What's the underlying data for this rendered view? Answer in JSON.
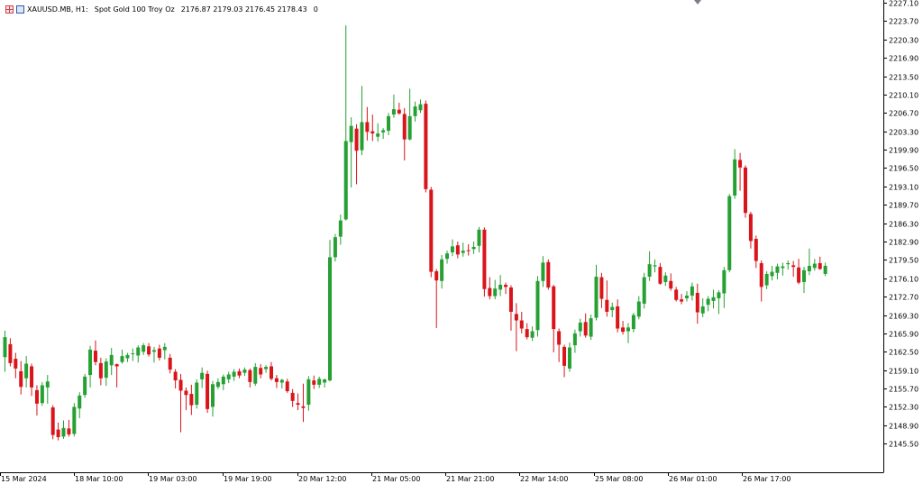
{
  "header": {
    "symbol": "XAUUSD.MB, H1:",
    "description": "Spot Gold 100 Troy Oz",
    "ohlc": "2176.87 2179.03 2176.45 2178.43",
    "spread": "0"
  },
  "colors": {
    "bull": "#26a033",
    "bear": "#d9141a",
    "wick_bull": "#26a033",
    "wick_bear": "#d9141a",
    "axis": "#000000",
    "background": "#ffffff"
  },
  "chart_data": {
    "type": "candlestick",
    "ylim": [
      2143.7,
      2227.1
    ],
    "y_ticks": [
      "2227.10",
      "2223.70",
      "2220.30",
      "2216.90",
      "2213.50",
      "2210.10",
      "2206.70",
      "2203.30",
      "2199.90",
      "2196.50",
      "2193.10",
      "2189.70",
      "2186.30",
      "2182.90",
      "2179.50",
      "2176.10",
      "2172.70",
      "2169.30",
      "2165.90",
      "2162.50",
      "2159.10",
      "2155.70",
      "2152.30",
      "2148.90",
      "2145.50"
    ],
    "x_labels": [
      "15 Mar 2024",
      "18 Mar 10:00",
      "19 Mar 03:00",
      "19 Mar 19:00",
      "20 Mar 12:00",
      "21 Mar 05:00",
      "21 Mar 21:00",
      "22 Mar 14:00",
      "25 Mar 08:00",
      "26 Mar 01:00",
      "26 Mar 17:00"
    ],
    "grid": false,
    "candles": [
      {
        "o": 2161.5,
        "h": 2166.4,
        "l": 2158.8,
        "c": 2165.2
      },
      {
        "o": 2163.9,
        "h": 2165.0,
        "l": 2159.8,
        "c": 2160.4
      },
      {
        "o": 2161.2,
        "h": 2162.3,
        "l": 2157.6,
        "c": 2159.4
      },
      {
        "o": 2158.9,
        "h": 2160.8,
        "l": 2154.6,
        "c": 2156.0
      },
      {
        "o": 2157.6,
        "h": 2161.7,
        "l": 2155.9,
        "c": 2160.3
      },
      {
        "o": 2159.8,
        "h": 2160.3,
        "l": 2154.3,
        "c": 2155.9
      },
      {
        "o": 2155.4,
        "h": 2156.3,
        "l": 2150.7,
        "c": 2152.9
      },
      {
        "o": 2153.0,
        "h": 2156.9,
        "l": 2152.5,
        "c": 2156.3
      },
      {
        "o": 2155.9,
        "h": 2158.2,
        "l": 2152.9,
        "c": 2157.0
      },
      {
        "o": 2152.2,
        "h": 2152.6,
        "l": 2146.3,
        "c": 2147.1
      },
      {
        "o": 2148.1,
        "h": 2149.4,
        "l": 2146.1,
        "c": 2146.7
      },
      {
        "o": 2146.8,
        "h": 2149.8,
        "l": 2146.4,
        "c": 2148.4
      },
      {
        "o": 2148.3,
        "h": 2149.9,
        "l": 2146.8,
        "c": 2147.2
      },
      {
        "o": 2147.3,
        "h": 2153.0,
        "l": 2146.8,
        "c": 2152.3
      },
      {
        "o": 2152.0,
        "h": 2155.0,
        "l": 2150.2,
        "c": 2154.4
      },
      {
        "o": 2154.5,
        "h": 2158.4,
        "l": 2154.0,
        "c": 2157.9
      },
      {
        "o": 2158.2,
        "h": 2163.6,
        "l": 2155.9,
        "c": 2162.9
      },
      {
        "o": 2162.7,
        "h": 2164.6,
        "l": 2160.0,
        "c": 2160.6
      },
      {
        "o": 2160.4,
        "h": 2161.4,
        "l": 2156.3,
        "c": 2157.6
      },
      {
        "o": 2157.7,
        "h": 2161.3,
        "l": 2156.2,
        "c": 2160.7
      },
      {
        "o": 2160.0,
        "h": 2163.2,
        "l": 2158.2,
        "c": 2161.9
      },
      {
        "o": 2160.2,
        "h": 2160.3,
        "l": 2155.9,
        "c": 2159.8
      },
      {
        "o": 2160.6,
        "h": 2162.9,
        "l": 2160.3,
        "c": 2161.7
      },
      {
        "o": 2161.3,
        "h": 2162.3,
        "l": 2160.6,
        "c": 2161.9
      },
      {
        "o": 2162.1,
        "h": 2163.1,
        "l": 2160.8,
        "c": 2162.2
      },
      {
        "o": 2161.8,
        "h": 2163.7,
        "l": 2160.5,
        "c": 2163.3
      },
      {
        "o": 2162.5,
        "h": 2164.1,
        "l": 2161.9,
        "c": 2163.7
      },
      {
        "o": 2163.5,
        "h": 2164.1,
        "l": 2161.6,
        "c": 2162.0
      },
      {
        "o": 2162.5,
        "h": 2163.4,
        "l": 2160.5,
        "c": 2162.8
      },
      {
        "o": 2163.1,
        "h": 2163.8,
        "l": 2160.9,
        "c": 2161.4
      },
      {
        "o": 2162.8,
        "h": 2164.1,
        "l": 2161.1,
        "c": 2163.4
      },
      {
        "o": 2161.4,
        "h": 2162.1,
        "l": 2158.5,
        "c": 2159.2
      },
      {
        "o": 2158.8,
        "h": 2159.3,
        "l": 2155.7,
        "c": 2157.2
      },
      {
        "o": 2157.3,
        "h": 2158.4,
        "l": 2147.6,
        "c": 2155.3
      },
      {
        "o": 2155.3,
        "h": 2155.9,
        "l": 2151.7,
        "c": 2154.5
      },
      {
        "o": 2154.7,
        "h": 2156.4,
        "l": 2150.8,
        "c": 2152.6
      },
      {
        "o": 2152.7,
        "h": 2157.4,
        "l": 2152.0,
        "c": 2156.8
      },
      {
        "o": 2157.4,
        "h": 2159.6,
        "l": 2155.8,
        "c": 2158.6
      },
      {
        "o": 2158.4,
        "h": 2159.0,
        "l": 2151.2,
        "c": 2151.9
      },
      {
        "o": 2152.3,
        "h": 2157.1,
        "l": 2150.5,
        "c": 2156.5
      },
      {
        "o": 2156.0,
        "h": 2157.6,
        "l": 2155.6,
        "c": 2156.9
      },
      {
        "o": 2156.5,
        "h": 2158.3,
        "l": 2155.4,
        "c": 2157.9
      },
      {
        "o": 2157.4,
        "h": 2158.8,
        "l": 2156.7,
        "c": 2158.3
      },
      {
        "o": 2157.9,
        "h": 2159.3,
        "l": 2157.1,
        "c": 2158.8
      },
      {
        "o": 2158.9,
        "h": 2159.4,
        "l": 2157.6,
        "c": 2158.1
      },
      {
        "o": 2158.6,
        "h": 2159.6,
        "l": 2158.0,
        "c": 2159.2
      },
      {
        "o": 2159.1,
        "h": 2159.4,
        "l": 2155.9,
        "c": 2156.9
      },
      {
        "o": 2156.6,
        "h": 2160.4,
        "l": 2156.2,
        "c": 2159.7
      },
      {
        "o": 2159.5,
        "h": 2160.2,
        "l": 2157.6,
        "c": 2158.3
      },
      {
        "o": 2159.3,
        "h": 2160.0,
        "l": 2158.6,
        "c": 2159.7
      },
      {
        "o": 2159.8,
        "h": 2160.6,
        "l": 2157.2,
        "c": 2157.5
      },
      {
        "o": 2157.6,
        "h": 2158.2,
        "l": 2155.8,
        "c": 2156.9
      },
      {
        "o": 2156.8,
        "h": 2157.5,
        "l": 2155.7,
        "c": 2157.3
      },
      {
        "o": 2157.0,
        "h": 2157.5,
        "l": 2154.9,
        "c": 2155.2
      },
      {
        "o": 2154.9,
        "h": 2155.6,
        "l": 2152.3,
        "c": 2153.4
      },
      {
        "o": 2153.0,
        "h": 2154.8,
        "l": 2151.7,
        "c": 2152.7
      },
      {
        "o": 2152.4,
        "h": 2156.6,
        "l": 2149.5,
        "c": 2152.1
      },
      {
        "o": 2152.7,
        "h": 2158.0,
        "l": 2151.6,
        "c": 2157.4
      },
      {
        "o": 2157.2,
        "h": 2158.1,
        "l": 2155.6,
        "c": 2156.4
      },
      {
        "o": 2156.4,
        "h": 2157.9,
        "l": 2155.8,
        "c": 2157.5
      },
      {
        "o": 2156.8,
        "h": 2157.5,
        "l": 2155.9,
        "c": 2157.4
      },
      {
        "o": 2157.2,
        "h": 2183.2,
        "l": 2157.0,
        "c": 2180.0
      },
      {
        "o": 2180.0,
        "h": 2184.3,
        "l": 2179.2,
        "c": 2183.7
      },
      {
        "o": 2183.8,
        "h": 2187.9,
        "l": 2182.3,
        "c": 2186.8
      },
      {
        "o": 2187.0,
        "h": 2222.9,
        "l": 2186.8,
        "c": 2201.5
      },
      {
        "o": 2201.3,
        "h": 2205.9,
        "l": 2192.9,
        "c": 2204.3
      },
      {
        "o": 2203.8,
        "h": 2204.6,
        "l": 2193.5,
        "c": 2199.7
      },
      {
        "o": 2199.8,
        "h": 2211.7,
        "l": 2198.9,
        "c": 2205.0
      },
      {
        "o": 2205.0,
        "h": 2207.8,
        "l": 2201.6,
        "c": 2203.2
      },
      {
        "o": 2203.3,
        "h": 2206.4,
        "l": 2201.5,
        "c": 2202.9
      },
      {
        "o": 2202.3,
        "h": 2204.8,
        "l": 2201.4,
        "c": 2202.9
      },
      {
        "o": 2203.1,
        "h": 2203.9,
        "l": 2201.9,
        "c": 2203.5
      },
      {
        "o": 2203.4,
        "h": 2206.7,
        "l": 2202.6,
        "c": 2206.1
      },
      {
        "o": 2206.4,
        "h": 2210.1,
        "l": 2205.8,
        "c": 2207.4
      },
      {
        "o": 2207.3,
        "h": 2208.6,
        "l": 2206.4,
        "c": 2206.6
      },
      {
        "o": 2206.5,
        "h": 2207.6,
        "l": 2197.9,
        "c": 2201.8
      },
      {
        "o": 2201.8,
        "h": 2211.2,
        "l": 2201.6,
        "c": 2206.1
      },
      {
        "o": 2206.1,
        "h": 2208.8,
        "l": 2205.1,
        "c": 2207.9
      },
      {
        "o": 2207.2,
        "h": 2209.2,
        "l": 2206.7,
        "c": 2208.3
      },
      {
        "o": 2208.4,
        "h": 2209.0,
        "l": 2192.0,
        "c": 2192.6
      },
      {
        "o": 2192.5,
        "h": 2193.0,
        "l": 2176.3,
        "c": 2177.3
      },
      {
        "o": 2177.4,
        "h": 2177.8,
        "l": 2166.9,
        "c": 2175.7
      },
      {
        "o": 2175.6,
        "h": 2180.4,
        "l": 2174.2,
        "c": 2179.6
      },
      {
        "o": 2179.7,
        "h": 2181.2,
        "l": 2178.8,
        "c": 2180.7
      },
      {
        "o": 2180.9,
        "h": 2183.3,
        "l": 2180.2,
        "c": 2182.0
      },
      {
        "o": 2182.2,
        "h": 2182.9,
        "l": 2179.8,
        "c": 2180.5
      },
      {
        "o": 2180.8,
        "h": 2182.7,
        "l": 2180.1,
        "c": 2181.2
      },
      {
        "o": 2181.3,
        "h": 2182.4,
        "l": 2180.3,
        "c": 2181.2
      },
      {
        "o": 2181.5,
        "h": 2182.9,
        "l": 2180.6,
        "c": 2181.9
      },
      {
        "o": 2182.1,
        "h": 2185.6,
        "l": 2180.9,
        "c": 2185.1
      },
      {
        "o": 2185.1,
        "h": 2185.5,
        "l": 2172.7,
        "c": 2174.1
      },
      {
        "o": 2174.3,
        "h": 2176.3,
        "l": 2172.2,
        "c": 2172.8
      },
      {
        "o": 2172.8,
        "h": 2175.8,
        "l": 2172.2,
        "c": 2174.2
      },
      {
        "o": 2174.0,
        "h": 2176.7,
        "l": 2172.8,
        "c": 2174.9
      },
      {
        "o": 2174.9,
        "h": 2175.3,
        "l": 2173.2,
        "c": 2174.5
      },
      {
        "o": 2174.4,
        "h": 2174.8,
        "l": 2166.4,
        "c": 2169.9
      },
      {
        "o": 2169.5,
        "h": 2171.5,
        "l": 2162.6,
        "c": 2168.3
      },
      {
        "o": 2168.3,
        "h": 2169.9,
        "l": 2165.9,
        "c": 2166.8
      },
      {
        "o": 2166.7,
        "h": 2167.8,
        "l": 2164.8,
        "c": 2165.2
      },
      {
        "o": 2165.1,
        "h": 2167.2,
        "l": 2164.5,
        "c": 2166.3
      },
      {
        "o": 2166.5,
        "h": 2176.5,
        "l": 2165.3,
        "c": 2175.6
      },
      {
        "o": 2175.6,
        "h": 2180.2,
        "l": 2174.5,
        "c": 2179.0
      },
      {
        "o": 2179.1,
        "h": 2179.6,
        "l": 2174.0,
        "c": 2174.4
      },
      {
        "o": 2174.6,
        "h": 2174.9,
        "l": 2162.4,
        "c": 2166.7
      },
      {
        "o": 2166.3,
        "h": 2166.8,
        "l": 2160.6,
        "c": 2163.8
      },
      {
        "o": 2163.4,
        "h": 2163.8,
        "l": 2157.8,
        "c": 2159.9
      },
      {
        "o": 2159.4,
        "h": 2164.2,
        "l": 2158.8,
        "c": 2163.3
      },
      {
        "o": 2163.7,
        "h": 2166.6,
        "l": 2162.3,
        "c": 2165.9
      },
      {
        "o": 2166.3,
        "h": 2168.6,
        "l": 2165.3,
        "c": 2167.9
      },
      {
        "o": 2168.0,
        "h": 2169.6,
        "l": 2165.1,
        "c": 2165.5
      },
      {
        "o": 2165.3,
        "h": 2169.4,
        "l": 2164.7,
        "c": 2168.7
      },
      {
        "o": 2168.8,
        "h": 2178.6,
        "l": 2168.3,
        "c": 2176.4
      },
      {
        "o": 2176.3,
        "h": 2177.1,
        "l": 2170.6,
        "c": 2172.3
      },
      {
        "o": 2172.1,
        "h": 2175.7,
        "l": 2169.0,
        "c": 2169.9
      },
      {
        "o": 2170.2,
        "h": 2171.6,
        "l": 2168.9,
        "c": 2170.8
      },
      {
        "o": 2170.9,
        "h": 2172.2,
        "l": 2166.1,
        "c": 2166.8
      },
      {
        "o": 2167.0,
        "h": 2168.2,
        "l": 2165.7,
        "c": 2166.2
      },
      {
        "o": 2166.3,
        "h": 2167.8,
        "l": 2164.1,
        "c": 2167.0
      },
      {
        "o": 2166.7,
        "h": 2169.7,
        "l": 2166.1,
        "c": 2169.3
      },
      {
        "o": 2169.0,
        "h": 2172.8,
        "l": 2168.5,
        "c": 2171.8
      },
      {
        "o": 2171.4,
        "h": 2177.1,
        "l": 2170.5,
        "c": 2176.3
      },
      {
        "o": 2176.4,
        "h": 2181.1,
        "l": 2175.6,
        "c": 2178.7
      },
      {
        "o": 2178.3,
        "h": 2179.6,
        "l": 2177.2,
        "c": 2178.5
      },
      {
        "o": 2178.2,
        "h": 2178.9,
        "l": 2174.9,
        "c": 2175.1
      },
      {
        "o": 2175.4,
        "h": 2177.2,
        "l": 2174.7,
        "c": 2176.6
      },
      {
        "o": 2175.6,
        "h": 2177.0,
        "l": 2173.8,
        "c": 2174.2
      },
      {
        "o": 2174.0,
        "h": 2174.5,
        "l": 2171.8,
        "c": 2172.1
      },
      {
        "o": 2172.2,
        "h": 2173.2,
        "l": 2171.3,
        "c": 2171.8
      },
      {
        "o": 2172.4,
        "h": 2173.7,
        "l": 2171.8,
        "c": 2172.9
      },
      {
        "o": 2172.9,
        "h": 2175.3,
        "l": 2172.0,
        "c": 2174.6
      },
      {
        "o": 2173.4,
        "h": 2175.1,
        "l": 2167.7,
        "c": 2169.8
      },
      {
        "o": 2169.6,
        "h": 2172.4,
        "l": 2168.9,
        "c": 2170.9
      },
      {
        "o": 2171.2,
        "h": 2172.8,
        "l": 2170.0,
        "c": 2172.3
      },
      {
        "o": 2171.9,
        "h": 2174.0,
        "l": 2170.5,
        "c": 2172.6
      },
      {
        "o": 2172.4,
        "h": 2173.9,
        "l": 2169.5,
        "c": 2173.5
      },
      {
        "o": 2173.3,
        "h": 2178.2,
        "l": 2170.6,
        "c": 2177.6
      },
      {
        "o": 2177.6,
        "h": 2191.7,
        "l": 2177.2,
        "c": 2191.3
      },
      {
        "o": 2191.4,
        "h": 2200.0,
        "l": 2190.8,
        "c": 2198.1
      },
      {
        "o": 2198.0,
        "h": 2199.3,
        "l": 2192.3,
        "c": 2196.6
      },
      {
        "o": 2196.6,
        "h": 2197.0,
        "l": 2187.3,
        "c": 2188.2
      },
      {
        "o": 2188.0,
        "h": 2188.4,
        "l": 2181.6,
        "c": 2183.0
      },
      {
        "o": 2183.4,
        "h": 2184.0,
        "l": 2178.0,
        "c": 2179.3
      },
      {
        "o": 2178.9,
        "h": 2179.4,
        "l": 2171.8,
        "c": 2174.5
      },
      {
        "o": 2174.8,
        "h": 2177.4,
        "l": 2174.1,
        "c": 2176.9
      },
      {
        "o": 2176.5,
        "h": 2178.4,
        "l": 2175.7,
        "c": 2177.3
      },
      {
        "o": 2177.1,
        "h": 2178.8,
        "l": 2175.9,
        "c": 2178.3
      },
      {
        "o": 2178.0,
        "h": 2179.0,
        "l": 2176.6,
        "c": 2178.3
      },
      {
        "o": 2178.7,
        "h": 2179.4,
        "l": 2177.7,
        "c": 2178.9
      },
      {
        "o": 2178.5,
        "h": 2179.3,
        "l": 2176.4,
        "c": 2178.2
      },
      {
        "o": 2178.1,
        "h": 2179.7,
        "l": 2175.0,
        "c": 2175.3
      },
      {
        "o": 2175.4,
        "h": 2178.2,
        "l": 2173.4,
        "c": 2177.6
      },
      {
        "o": 2177.4,
        "h": 2181.6,
        "l": 2176.7,
        "c": 2178.4
      },
      {
        "o": 2178.0,
        "h": 2179.7,
        "l": 2177.5,
        "c": 2178.8
      },
      {
        "o": 2178.9,
        "h": 2180.1,
        "l": 2177.7,
        "c": 2177.8
      },
      {
        "o": 2176.9,
        "h": 2179.0,
        "l": 2176.5,
        "c": 2178.4
      }
    ]
  }
}
